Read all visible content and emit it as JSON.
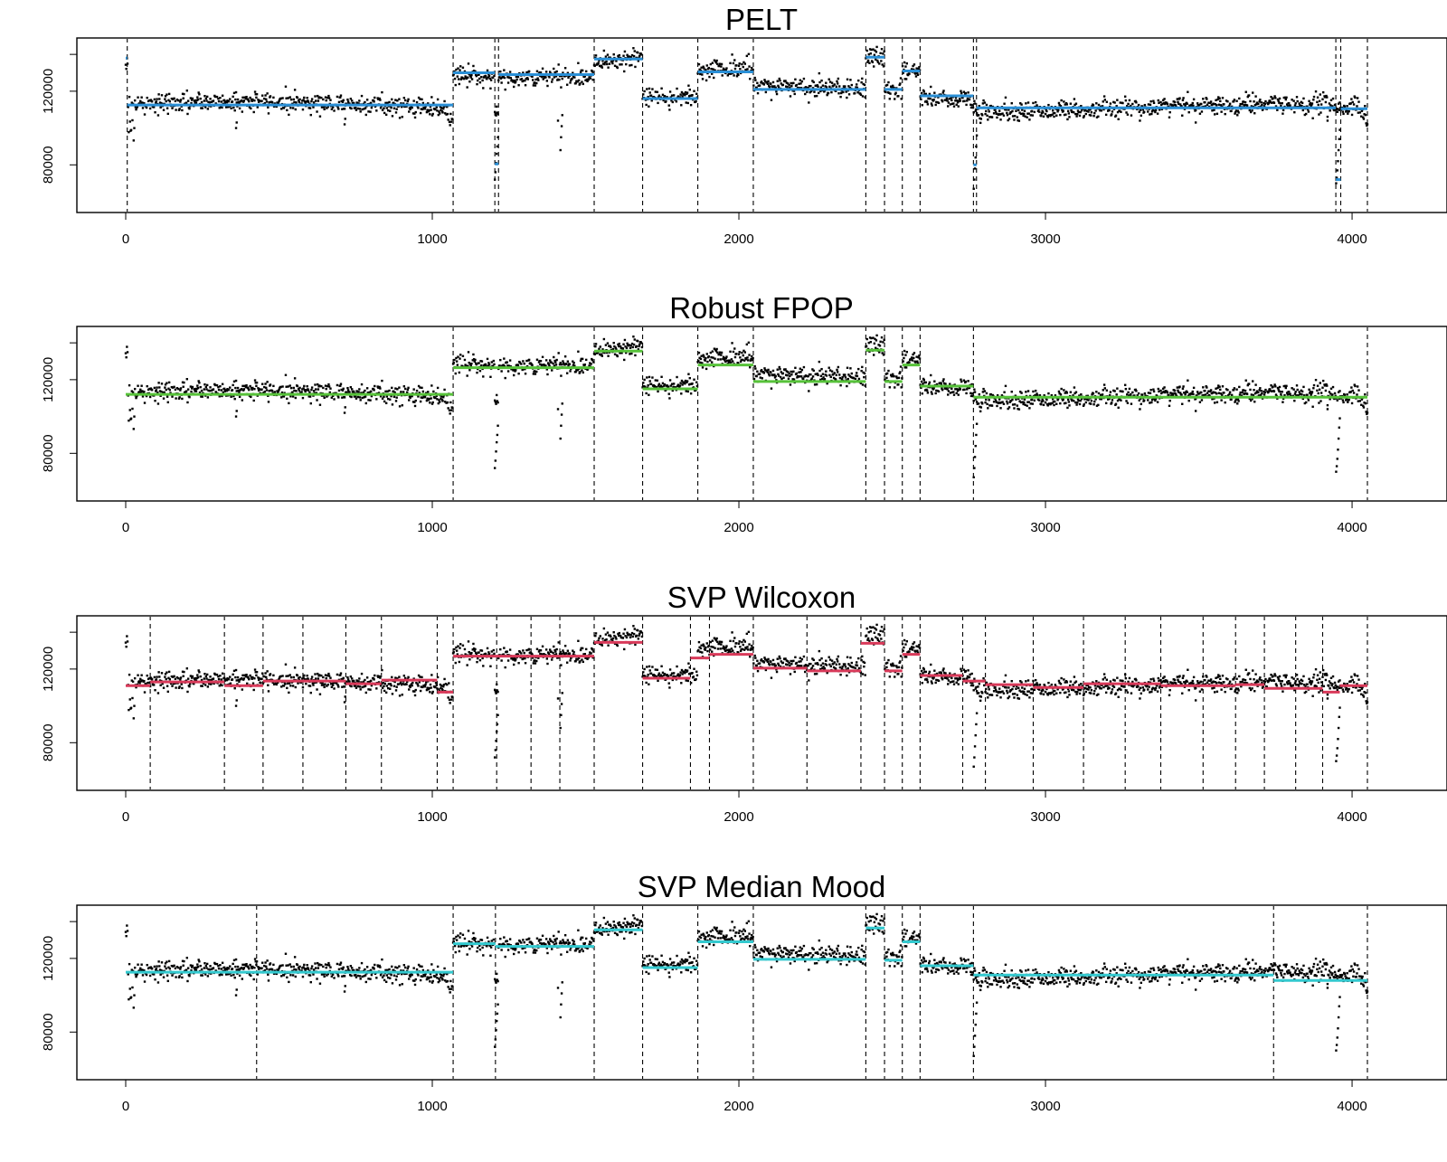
{
  "chart_data": [
    {
      "type": "scatter",
      "title": "PELT",
      "xlim": [
        -160,
        4190
      ],
      "ylim": [
        61000,
        144000
      ],
      "xticks": [
        0,
        1000,
        2000,
        3000,
        4000
      ],
      "yticks": [
        80000,
        120000
      ],
      "line_color": "#2a8fd6",
      "changepoints": [
        5,
        1068,
        1204,
        1216,
        1528,
        1686,
        1866,
        2047,
        2414,
        2475,
        2533,
        2591,
        2765,
        2775,
        3947,
        3963,
        4050
      ],
      "segments": [
        {
          "x": [
            0,
            5
          ],
          "y": 138000
        },
        {
          "x": [
            5,
            1068
          ],
          "y": 112500
        },
        {
          "x": [
            1068,
            1204
          ],
          "y": 130000
        },
        {
          "x": [
            1204,
            1216
          ],
          "y": 80500
        },
        {
          "x": [
            1216,
            1528
          ],
          "y": 129000
        },
        {
          "x": [
            1528,
            1686
          ],
          "y": 137500
        },
        {
          "x": [
            1686,
            1866
          ],
          "y": 116000
        },
        {
          "x": [
            1866,
            2047
          ],
          "y": 130500
        },
        {
          "x": [
            2047,
            2414
          ],
          "y": 121000
        },
        {
          "x": [
            2414,
            2475
          ],
          "y": 138500
        },
        {
          "x": [
            2475,
            2533
          ],
          "y": 121000
        },
        {
          "x": [
            2533,
            2591
          ],
          "y": 131000
        },
        {
          "x": [
            2591,
            2765
          ],
          "y": 117500
        },
        {
          "x": [
            2765,
            2775
          ],
          "y": 80000
        },
        {
          "x": [
            2775,
            3947
          ],
          "y": 111000
        },
        {
          "x": [
            3947,
            3963
          ],
          "y": 72000
        },
        {
          "x": [
            3963,
            4050
          ],
          "y": 110500
        }
      ]
    },
    {
      "type": "scatter",
      "title": "Robust FPOP",
      "xlim": [
        -160,
        4190
      ],
      "ylim": [
        61000,
        144000
      ],
      "xticks": [
        0,
        1000,
        2000,
        3000,
        4000
      ],
      "yticks": [
        80000,
        120000
      ],
      "line_color": "#57c23a",
      "changepoints": [
        1068,
        1528,
        1686,
        1866,
        2047,
        2414,
        2475,
        2533,
        2591,
        2765,
        4050
      ],
      "segments": [
        {
          "x": [
            0,
            1068
          ],
          "y": 112000
        },
        {
          "x": [
            1068,
            1528
          ],
          "y": 126500
        },
        {
          "x": [
            1528,
            1686
          ],
          "y": 135500
        },
        {
          "x": [
            1686,
            1866
          ],
          "y": 115000
        },
        {
          "x": [
            1866,
            2047
          ],
          "y": 128000
        },
        {
          "x": [
            2047,
            2414
          ],
          "y": 119000
        },
        {
          "x": [
            2414,
            2475
          ],
          "y": 136000
        },
        {
          "x": [
            2475,
            2533
          ],
          "y": 119000
        },
        {
          "x": [
            2533,
            2591
          ],
          "y": 128000
        },
        {
          "x": [
            2591,
            2765
          ],
          "y": 116500
        },
        {
          "x": [
            2765,
            4050
          ],
          "y": 110500
        }
      ]
    },
    {
      "type": "scatter",
      "title": "SVP Wilcoxon",
      "xlim": [
        -160,
        4190
      ],
      "ylim": [
        61000,
        144000
      ],
      "xticks": [
        0,
        1000,
        2000,
        3000,
        4000
      ],
      "yticks": [
        80000,
        120000
      ],
      "line_color": "#d93a5a",
      "changepoints": [
        80,
        322,
        448,
        578,
        718,
        834,
        1016,
        1068,
        1210,
        1322,
        1416,
        1528,
        1686,
        1842,
        1904,
        2047,
        2222,
        2398,
        2475,
        2533,
        2591,
        2730,
        2804,
        2960,
        3124,
        3260,
        3376,
        3514,
        3620,
        3714,
        3816,
        3904,
        4050
      ],
      "segments": [
        {
          "x": [
            0,
            80
          ],
          "y": 111000
        },
        {
          "x": [
            80,
            322
          ],
          "y": 113000
        },
        {
          "x": [
            322,
            448
          ],
          "y": 111000
        },
        {
          "x": [
            448,
            718
          ],
          "y": 113500
        },
        {
          "x": [
            718,
            834
          ],
          "y": 112000
        },
        {
          "x": [
            834,
            1016
          ],
          "y": 114000
        },
        {
          "x": [
            1016,
            1068
          ],
          "y": 107500
        },
        {
          "x": [
            1068,
            1528
          ],
          "y": 127000
        },
        {
          "x": [
            1528,
            1686
          ],
          "y": 134500
        },
        {
          "x": [
            1686,
            1842
          ],
          "y": 115000
        },
        {
          "x": [
            1842,
            1904
          ],
          "y": 126000
        },
        {
          "x": [
            1904,
            2047
          ],
          "y": 128000
        },
        {
          "x": [
            2047,
            2222
          ],
          "y": 120500
        },
        {
          "x": [
            2222,
            2398
          ],
          "y": 119000
        },
        {
          "x": [
            2398,
            2475
          ],
          "y": 134000
        },
        {
          "x": [
            2475,
            2533
          ],
          "y": 119000
        },
        {
          "x": [
            2533,
            2591
          ],
          "y": 128000
        },
        {
          "x": [
            2591,
            2730
          ],
          "y": 116500
        },
        {
          "x": [
            2730,
            2804
          ],
          "y": 113500
        },
        {
          "x": [
            2804,
            2960
          ],
          "y": 111500
        },
        {
          "x": [
            2960,
            3124
          ],
          "y": 110000
        },
        {
          "x": [
            3124,
            3376
          ],
          "y": 112000
        },
        {
          "x": [
            3376,
            3620
          ],
          "y": 111000
        },
        {
          "x": [
            3620,
            3714
          ],
          "y": 111500
        },
        {
          "x": [
            3714,
            3904
          ],
          "y": 109500
        },
        {
          "x": [
            3904,
            3960
          ],
          "y": 107500
        },
        {
          "x": [
            3960,
            4050
          ],
          "y": 111000
        }
      ]
    },
    {
      "type": "scatter",
      "title": "SVP Median Mood",
      "xlim": [
        -160,
        4190
      ],
      "ylim": [
        61000,
        144000
      ],
      "xticks": [
        0,
        1000,
        2000,
        3000,
        4000
      ],
      "yticks": [
        80000,
        120000
      ],
      "line_color": "#33c9cf",
      "changepoints": [
        427,
        1068,
        1206,
        1528,
        1686,
        1866,
        2047,
        2414,
        2475,
        2533,
        2591,
        2765,
        3744,
        4050
      ],
      "segments": [
        {
          "x": [
            0,
            1068
          ],
          "y": 112500
        },
        {
          "x": [
            1068,
            1206
          ],
          "y": 128000
        },
        {
          "x": [
            1206,
            1528
          ],
          "y": 126500
        },
        {
          "x": [
            1528,
            1686
          ],
          "y": 135500
        },
        {
          "x": [
            1686,
            1866
          ],
          "y": 115000
        },
        {
          "x": [
            1866,
            2047
          ],
          "y": 129000
        },
        {
          "x": [
            2047,
            2414
          ],
          "y": 119500
        },
        {
          "x": [
            2414,
            2475
          ],
          "y": 136500
        },
        {
          "x": [
            2475,
            2533
          ],
          "y": 119000
        },
        {
          "x": [
            2533,
            2591
          ],
          "y": 129000
        },
        {
          "x": [
            2591,
            2765
          ],
          "y": 116000
        },
        {
          "x": [
            2765,
            3744
          ],
          "y": 111000
        },
        {
          "x": [
            3744,
            4050
          ],
          "y": 108000
        }
      ]
    }
  ]
}
